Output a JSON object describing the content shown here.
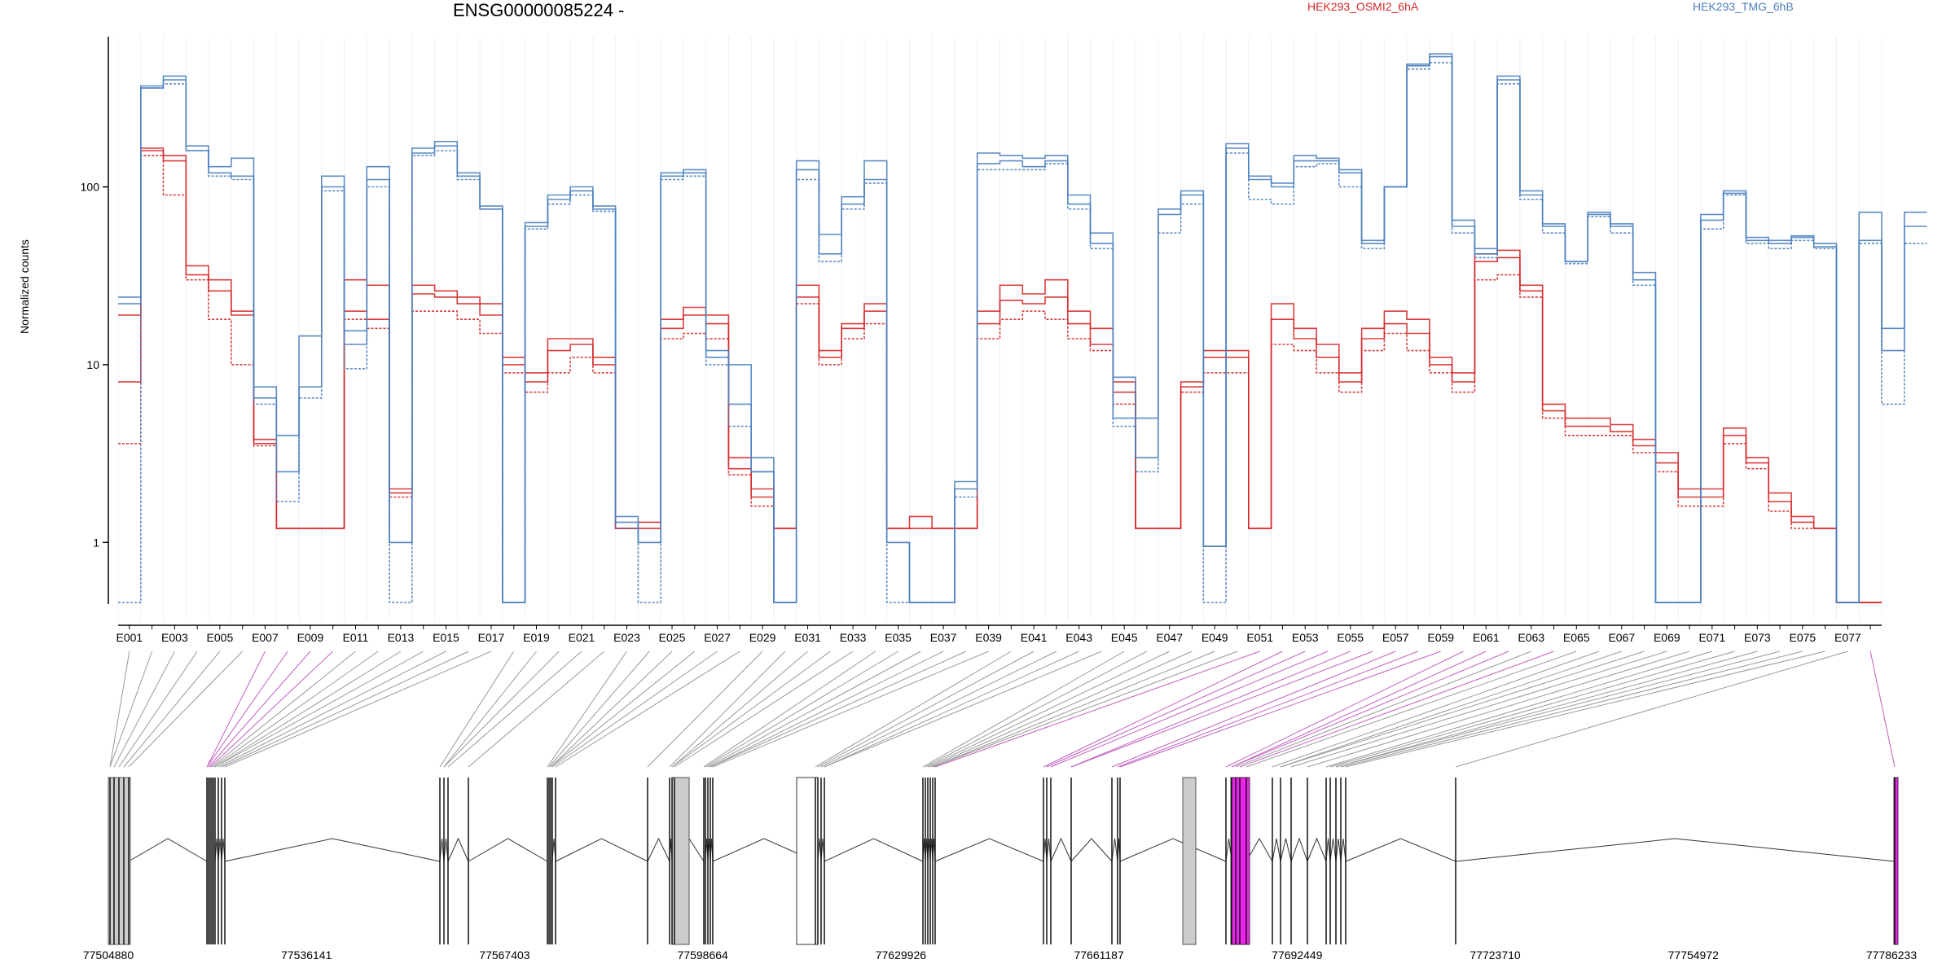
{
  "chart_data": {
    "type": "line",
    "title": "ENSG00000085224 -",
    "ylabel": "Normalized counts",
    "yscale": "log",
    "ylim": [
      0.45,
      700
    ],
    "yticks": [
      1,
      10,
      100
    ],
    "ytick_labels": [
      "1",
      "10",
      "100"
    ],
    "exon_labels": [
      "E001",
      "E003",
      "E005",
      "E007",
      "E009",
      "E011",
      "E013",
      "E015",
      "E017",
      "E019",
      "E021",
      "E023",
      "E025",
      "E027",
      "E029",
      "E031",
      "E033",
      "E035",
      "E037",
      "E039",
      "E041",
      "E043",
      "E045",
      "E047",
      "E049",
      "E051",
      "E053",
      "E055",
      "E057",
      "E059",
      "E061",
      "E063",
      "E065",
      "E067",
      "E069",
      "E071",
      "E073",
      "E075",
      "E077"
    ],
    "n_bins": 78,
    "legend_position": "top",
    "series": [
      {
        "name": "HEK293_OSMI2_6hA",
        "color": "#d62728",
        "values": [
          8,
          165,
          150,
          36,
          30,
          20,
          3.8,
          1.2,
          1.2,
          1.2,
          30,
          28,
          2,
          28,
          26,
          24,
          22,
          11,
          9,
          14,
          14,
          11,
          1.2,
          1.3,
          18,
          21,
          19,
          3,
          2,
          1.2,
          28,
          12,
          17,
          22,
          1.2,
          1.4,
          1.2,
          1.2,
          20,
          28,
          25,
          30,
          20,
          16,
          8,
          1.2,
          1.2,
          8,
          12,
          12,
          1.2,
          22,
          16,
          13,
          9,
          16,
          20,
          18,
          11,
          9,
          42,
          44,
          28,
          6,
          5,
          5,
          4.6,
          3.8,
          3.2,
          2,
          2,
          4.4,
          3,
          1.9,
          1.4,
          1.2,
          0.46,
          0.46
        ]
      },
      {
        "name": "HEK293_OSMI2_6hA",
        "color": "#d62728",
        "values": [
          19,
          160,
          140,
          32,
          26,
          19,
          3.6,
          1.2,
          1.2,
          1.2,
          20,
          18,
          1.9,
          25,
          24,
          22,
          19,
          10,
          8,
          12,
          13,
          10,
          1.2,
          1.2,
          16,
          19,
          17,
          2.6,
          1.8,
          1.2,
          24,
          11,
          16,
          20,
          1.2,
          1.2,
          1.2,
          1.2,
          17,
          23,
          22,
          24,
          17,
          13,
          7,
          1.2,
          1.2,
          7.5,
          11,
          11,
          1.2,
          18,
          14,
          11,
          8,
          14,
          17,
          15,
          10,
          8,
          38,
          40,
          26,
          5.5,
          4.5,
          4.5,
          4.2,
          3.5,
          2.8,
          1.8,
          1.8,
          4,
          2.8,
          1.7,
          1.3,
          1.2,
          0.46,
          0.46
        ]
      },
      {
        "name": "HEK293_OSMI2_6hA",
        "color": "#d62728",
        "values": [
          3.6,
          150,
          90,
          30,
          18,
          10,
          3.5,
          1.2,
          1.2,
          1.2,
          18,
          16,
          1.8,
          20,
          20,
          18,
          15,
          9,
          7,
          9,
          11,
          9,
          1.2,
          1.2,
          14,
          15,
          14,
          2.4,
          1.6,
          1.2,
          22,
          10,
          14,
          17,
          1.2,
          1.2,
          1.2,
          1.2,
          14,
          18,
          20,
          18,
          14,
          12,
          6,
          1.2,
          1.2,
          7,
          9,
          9,
          1.2,
          13,
          12,
          9,
          7,
          12,
          15,
          12,
          9,
          7,
          30,
          32,
          24,
          5,
          4,
          4,
          4,
          3.2,
          2.5,
          1.6,
          1.6,
          3.6,
          2.6,
          1.5,
          1.2,
          1.2,
          0.46,
          0.46
        ]
      },
      {
        "name": "HEK293_TMG_6hB",
        "color": "#4a7fbf",
        "values": [
          24,
          370,
          420,
          170,
          130,
          145,
          7.5,
          4,
          14.5,
          115,
          15.5,
          130,
          1,
          165,
          180,
          120,
          78,
          0.46,
          63,
          90,
          100,
          78,
          1.4,
          1,
          120,
          125,
          12,
          10,
          3,
          0.46,
          140,
          54,
          88,
          140,
          1,
          0.46,
          0.46,
          2.2,
          155,
          150,
          145,
          150,
          90,
          55,
          8.5,
          5,
          75,
          95,
          0.95,
          175,
          115,
          105,
          150,
          145,
          125,
          50,
          100,
          490,
          560,
          65,
          45,
          420,
          95,
          62,
          38,
          72,
          62,
          33,
          0.46,
          0.46,
          70,
          95,
          52,
          50,
          53,
          48,
          0.46,
          72,
          16,
          72
        ]
      },
      {
        "name": "HEK293_TMG_6hB",
        "color": "#4a7fbf",
        "values": [
          22,
          360,
          400,
          160,
          120,
          115,
          6.5,
          2.5,
          7.5,
          100,
          13,
          110,
          1,
          155,
          170,
          115,
          75,
          0.46,
          60,
          85,
          95,
          75,
          1.3,
          1,
          115,
          120,
          11,
          6,
          2.5,
          0.46,
          125,
          42,
          80,
          110,
          1,
          0.46,
          0.46,
          2,
          135,
          140,
          130,
          140,
          80,
          48,
          5,
          3,
          70,
          90,
          0.95,
          165,
          110,
          100,
          140,
          140,
          120,
          48,
          100,
          480,
          540,
          60,
          42,
          400,
          90,
          60,
          38,
          70,
          60,
          30,
          0.46,
          0.46,
          65,
          92,
          50,
          48,
          52,
          46,
          0.46,
          50,
          12,
          60
        ]
      },
      {
        "name": "HEK293_TMG_6hB",
        "color": "#4a7fbf",
        "values": [
          0.46,
          360,
          380,
          160,
          115,
          110,
          6,
          1.7,
          6.5,
          95,
          9.5,
          100,
          0.46,
          150,
          160,
          110,
          75,
          0.46,
          58,
          80,
          90,
          73,
          1.2,
          0.46,
          110,
          115,
          10,
          4.5,
          2.5,
          0.46,
          110,
          38,
          75,
          105,
          0.46,
          0.46,
          0.46,
          1.8,
          125,
          125,
          125,
          135,
          75,
          45,
          4.5,
          2.5,
          55,
          80,
          0.46,
          155,
          85,
          80,
          130,
          135,
          100,
          45,
          100,
          460,
          500,
          55,
          40,
          380,
          85,
          55,
          37,
          68,
          55,
          28,
          0.46,
          0.46,
          58,
          90,
          48,
          45,
          50,
          45,
          0.46,
          48,
          6,
          48
        ]
      }
    ]
  },
  "gene_model": {
    "coord_labels": [
      "77504880",
      "77536141",
      "77567403",
      "77598664",
      "77629926",
      "77661187",
      "77692449",
      "77723710",
      "77754972",
      "77786233"
    ],
    "colors": {
      "exon_gray": "#cccccc",
      "exon_magenta": "#ee22ee",
      "connector_magenta": "#c060c0",
      "connector_gray": "#999999"
    }
  }
}
